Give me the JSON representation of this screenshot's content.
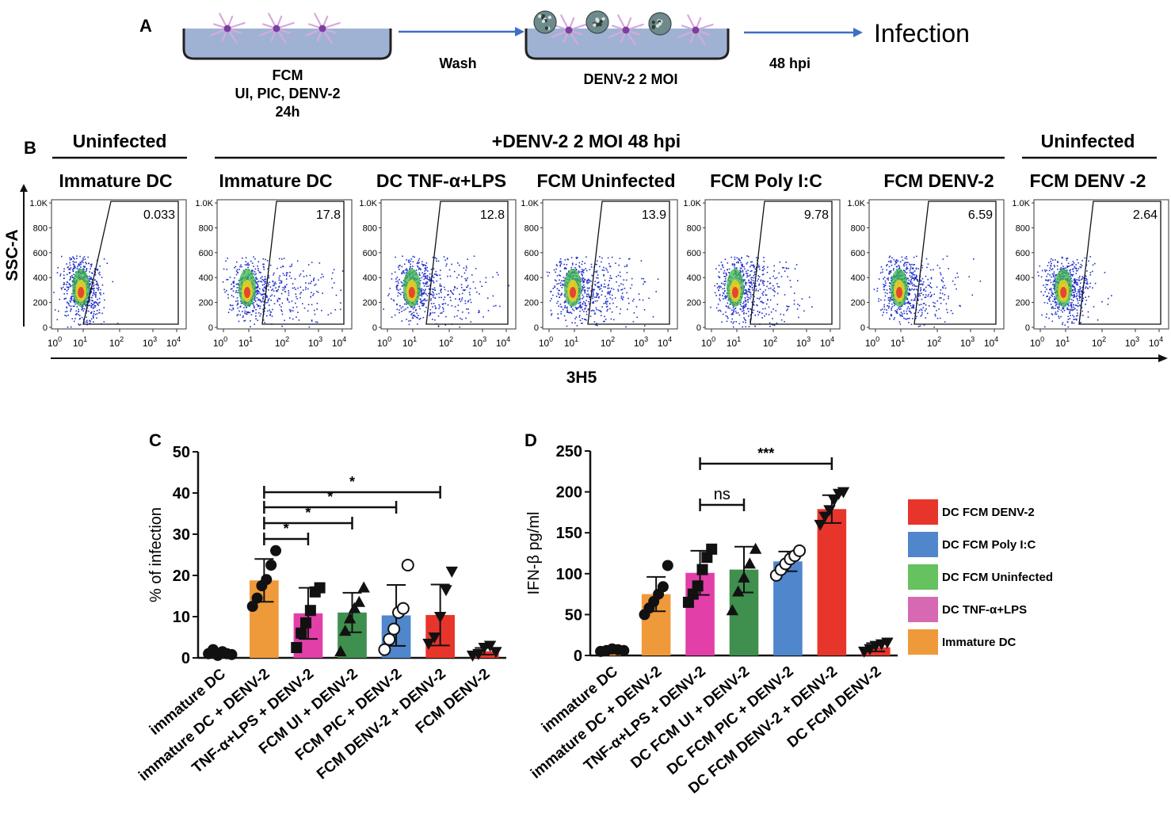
{
  "panel_a": {
    "letter": "A",
    "well1_label": [
      "FCM",
      "UI, PIC, DENV-2",
      "24h"
    ],
    "wash_label": "Wash",
    "well2_label": "DENV-2 2 MOI",
    "hpi_label": "48 hpi",
    "infection_label": "Infection",
    "colors": {
      "medium": "#9fb2d4",
      "well_outline": "#222222",
      "arrow": "#3d6fc2",
      "cell_body": "#7a3fa0",
      "cell_spikes": "#d7a9dd"
    }
  },
  "panel_b": {
    "letter": "B",
    "group_labels": [
      "Uninfected",
      "+DENV-2 2 MOI 48 hpi",
      "Uninfected"
    ],
    "y_axis_label": "SSC-A",
    "x_axis_label": "3H5",
    "y_ticks": [
      "0",
      "200",
      "400",
      "600",
      "800",
      "1.0K"
    ],
    "x_ticks": [
      "10^0",
      "10^1",
      "10^2",
      "10^3",
      "10^4"
    ],
    "plots": [
      {
        "title": "Immature DC",
        "gate_value": "0.033",
        "spread": 0.15,
        "cluster_x": 0.9
      },
      {
        "title": "Immature DC",
        "gate_value": "17.8",
        "spread": 0.95,
        "cluster_x": 1.0
      },
      {
        "title": "DC TNF-α+LPS",
        "gate_value": "12.8",
        "spread": 0.85,
        "cluster_x": 1.1
      },
      {
        "title": "FCM Uninfected",
        "gate_value": "13.9",
        "spread": 0.85,
        "cluster_x": 1.0
      },
      {
        "title": "FCM Poly I:C",
        "gate_value": "9.78",
        "spread": 0.7,
        "cluster_x": 1.0
      },
      {
        "title": "FCM DENV-2",
        "gate_value": "6.59",
        "spread": 0.6,
        "cluster_x": 1.0
      },
      {
        "title": "FCM DENV -2",
        "gate_value": "2.64",
        "spread": 0.35,
        "cluster_x": 0.9
      }
    ],
    "colors": {
      "dots": "#2130c8",
      "core_green": "#39b54a",
      "core_yellow": "#f0d020",
      "core_red": "#e23b2e"
    }
  },
  "chart_data": [
    {
      "type": "bar",
      "panel": "C",
      "ylabel": "% of infection",
      "ylim": [
        0,
        50
      ],
      "yticks": [
        0,
        10,
        20,
        30,
        40,
        50
      ],
      "categories": [
        "immature DC",
        "immature DC + DENV-2",
        "TNF-α+LPS + DENV-2",
        "FCM UI + DENV-2",
        "FCM PIC + DENV-2",
        "FCM DENV-2 + DENV-2",
        "FCM DENV-2"
      ],
      "values": [
        1.2,
        18.8,
        10.8,
        11.0,
        10.3,
        10.4,
        1.6
      ],
      "errors": [
        0.5,
        5.2,
        6.2,
        4.8,
        7.4,
        7.4,
        0.8
      ],
      "colors": [
        "#ef9a3a",
        "#ef9a3a",
        "#e23fa8",
        "#3f8f4f",
        "#4f86cc",
        "#e8352b",
        "#e8352b"
      ],
      "markers": [
        "circle",
        "circle",
        "square",
        "triangle",
        "circle-open",
        "triangle-down",
        "triangle-down"
      ],
      "points": [
        [
          1.0,
          2.0,
          0.6,
          1.5,
          1.0,
          0.8
        ],
        [
          12.5,
          14.5,
          17.5,
          19.0,
          22.5,
          26.0
        ],
        [
          2.5,
          6.0,
          8.5,
          11.5,
          16.0,
          17.0
        ],
        [
          1.5,
          6.5,
          9.5,
          12.0,
          13.5,
          17.0
        ],
        [
          2.0,
          4.5,
          7.0,
          11.0,
          12.0,
          22.5
        ],
        [
          3.5,
          5.0,
          10.0,
          16.5,
          21.0
        ],
        [
          0.6,
          1.0,
          2.5,
          3.0,
          1.5
        ]
      ],
      "significance": [
        {
          "from": 1,
          "to": 2,
          "label": "*"
        },
        {
          "from": 1,
          "to": 3,
          "label": "*"
        },
        {
          "from": 1,
          "to": 4,
          "label": "*"
        },
        {
          "from": 1,
          "to": 5,
          "label": "*"
        }
      ]
    },
    {
      "type": "bar",
      "panel": "D",
      "ylabel": "IFN-β pg/ml",
      "ylim": [
        0,
        250
      ],
      "yticks": [
        0,
        50,
        100,
        150,
        200,
        250
      ],
      "categories": [
        "immature DC",
        "immature DC + DENV-2",
        "TNF-α+LPS + DENV-2",
        "DC FCM UI + DENV-2",
        "DC FCM PIC + DENV-2",
        "DC FCM DENV-2 + DENV-2",
        "DC FCM DENV-2"
      ],
      "values": [
        7,
        75,
        101,
        105,
        115,
        179,
        10
      ],
      "errors": [
        2,
        21,
        27,
        28,
        12,
        17,
        5
      ],
      "colors": [
        "#ef9a3a",
        "#ef9a3a",
        "#e23fa8",
        "#3f8f4f",
        "#4f86cc",
        "#e8352b",
        "#e8352b"
      ],
      "markers": [
        "circle",
        "circle",
        "square",
        "triangle",
        "circle-open",
        "triangle-down",
        "triangle-down"
      ],
      "points": [
        [
          5,
          6,
          8,
          7,
          6
        ],
        [
          50,
          58,
          66,
          75,
          84,
          110
        ],
        [
          65,
          75,
          85,
          105,
          120,
          130
        ],
        [
          55,
          78,
          95,
          112,
          130
        ],
        [
          98,
          105,
          112,
          118,
          122,
          128
        ],
        [
          160,
          170,
          178,
          190,
          198,
          200
        ],
        [
          5,
          8,
          12,
          14,
          16
        ]
      ],
      "significance": [
        {
          "from": 2,
          "to": 3,
          "label": "ns"
        },
        {
          "from": 2,
          "to": 5,
          "label": "***"
        }
      ],
      "legend": [
        {
          "label": "DC FCM DENV-2",
          "color": "#e8352b"
        },
        {
          "label": "DC FCM Poly I:C",
          "color": "#4f86cc"
        },
        {
          "label": "DC FCM Uninfected",
          "color": "#66c15f"
        },
        {
          "label": "DC TNF-α+LPS",
          "color": "#d769b2"
        },
        {
          "label": "Immature DC",
          "color": "#ef9a3a"
        }
      ]
    }
  ]
}
